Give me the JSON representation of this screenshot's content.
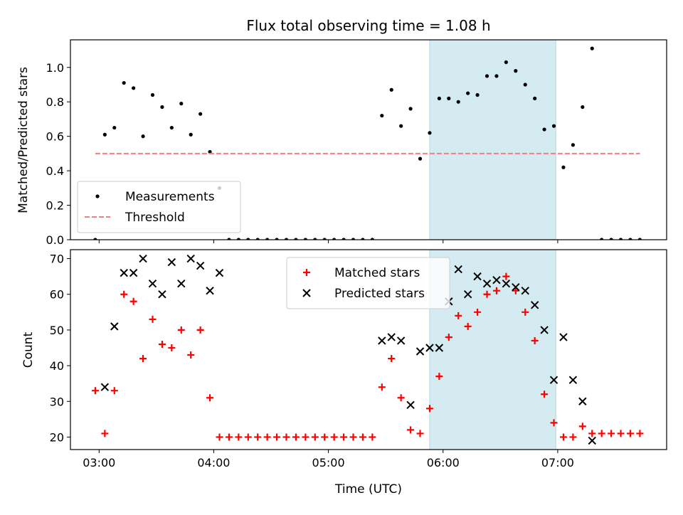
{
  "title": "Flux total observing time = 1.08 h",
  "chart_data": [
    {
      "id": "top",
      "type": "scatter",
      "ylabel": "Matched/Predicted stars",
      "xlim": [
        "02:45",
        "07:57"
      ],
      "ylim": [
        0,
        1.16
      ],
      "yticks": [
        0.0,
        0.2,
        0.4,
        0.6,
        0.8,
        1.0
      ],
      "yticklabels": [
        "0.0",
        "0.2",
        "0.4",
        "0.6",
        "0.8",
        "1.0"
      ],
      "shaded_interval": [
        "05:53",
        "06:59"
      ],
      "shade_color": "#d4ebf1",
      "legend": {
        "position": "lower-left",
        "entries": [
          "Measurements",
          "Threshold"
        ]
      },
      "series": [
        {
          "name": "Measurements",
          "marker": "dot",
          "color": "#000000",
          "points": [
            [
              "02:58",
              0.0
            ],
            [
              "03:03",
              0.61
            ],
            [
              "03:08",
              0.65
            ],
            [
              "03:13",
              0.91
            ],
            [
              "03:18",
              0.88
            ],
            [
              "03:23",
              0.6
            ],
            [
              "03:28",
              0.84
            ],
            [
              "03:33",
              0.77
            ],
            [
              "03:38",
              0.65
            ],
            [
              "03:43",
              0.79
            ],
            [
              "03:48",
              0.61
            ],
            [
              "03:53",
              0.73
            ],
            [
              "03:58",
              0.51
            ],
            [
              "04:03",
              0.3
            ],
            [
              "04:08",
              0.0
            ],
            [
              "04:13",
              0.0
            ],
            [
              "04:18",
              0.0
            ],
            [
              "04:23",
              0.0
            ],
            [
              "04:28",
              0.0
            ],
            [
              "04:33",
              0.0
            ],
            [
              "04:38",
              0.0
            ],
            [
              "04:43",
              0.0
            ],
            [
              "04:48",
              0.0
            ],
            [
              "04:53",
              0.0
            ],
            [
              "04:58",
              0.0
            ],
            [
              "05:03",
              0.0
            ],
            [
              "05:08",
              0.0
            ],
            [
              "05:13",
              0.0
            ],
            [
              "05:18",
              0.0
            ],
            [
              "05:23",
              0.0
            ],
            [
              "05:28",
              0.72
            ],
            [
              "05:33",
              0.87
            ],
            [
              "05:38",
              0.66
            ],
            [
              "05:43",
              0.76
            ],
            [
              "05:48",
              0.47
            ],
            [
              "05:53",
              0.62
            ],
            [
              "05:58",
              0.82
            ],
            [
              "06:03",
              0.82
            ],
            [
              "06:08",
              0.8
            ],
            [
              "06:13",
              0.85
            ],
            [
              "06:18",
              0.84
            ],
            [
              "06:23",
              0.95
            ],
            [
              "06:28",
              0.95
            ],
            [
              "06:33",
              1.03
            ],
            [
              "06:38",
              0.98
            ],
            [
              "06:43",
              0.9
            ],
            [
              "06:48",
              0.82
            ],
            [
              "06:53",
              0.64
            ],
            [
              "06:58",
              0.66
            ],
            [
              "07:03",
              0.42
            ],
            [
              "07:08",
              0.55
            ],
            [
              "07:13",
              0.77
            ],
            [
              "07:18",
              1.11
            ],
            [
              "07:23",
              0.0
            ],
            [
              "07:28",
              0.0
            ],
            [
              "07:33",
              0.0
            ],
            [
              "07:38",
              0.0
            ],
            [
              "07:43",
              0.0
            ]
          ]
        },
        {
          "name": "Threshold",
          "marker": "dashed-line",
          "color": "#f08080",
          "points": [
            [
              "02:58",
              0.5
            ],
            [
              "07:43",
              0.5
            ]
          ]
        }
      ]
    },
    {
      "id": "bottom",
      "type": "scatter",
      "xlabel": "Time (UTC)",
      "ylabel": "Count",
      "xlim": [
        "02:45",
        "07:57"
      ],
      "ylim": [
        16.5,
        72.5
      ],
      "xticks": [
        "03:00",
        "04:00",
        "05:00",
        "06:00",
        "07:00"
      ],
      "xticklabels": [
        "03:00",
        "04:00",
        "05:00",
        "06:00",
        "07:00"
      ],
      "yticks": [
        20,
        30,
        40,
        50,
        60,
        70
      ],
      "yticklabels": [
        "20",
        "30",
        "40",
        "50",
        "60",
        "70"
      ],
      "shaded_interval": [
        "05:53",
        "06:59"
      ],
      "shade_color": "#d4ebf1",
      "legend": {
        "position": "upper-center",
        "entries": [
          "Matched stars",
          "Predicted stars"
        ]
      },
      "series": [
        {
          "name": "Matched stars",
          "marker": "plus",
          "color": "#ff0000",
          "points": [
            [
              "02:58",
              33
            ],
            [
              "03:03",
              21
            ],
            [
              "03:08",
              33
            ],
            [
              "03:13",
              60
            ],
            [
              "03:18",
              58
            ],
            [
              "03:23",
              42
            ],
            [
              "03:28",
              53
            ],
            [
              "03:33",
              46
            ],
            [
              "03:38",
              45
            ],
            [
              "03:43",
              50
            ],
            [
              "03:48",
              43
            ],
            [
              "03:53",
              50
            ],
            [
              "03:58",
              31
            ],
            [
              "04:03",
              20
            ],
            [
              "04:08",
              20
            ],
            [
              "04:13",
              20
            ],
            [
              "04:18",
              20
            ],
            [
              "04:23",
              20
            ],
            [
              "04:28",
              20
            ],
            [
              "04:33",
              20
            ],
            [
              "04:38",
              20
            ],
            [
              "04:43",
              20
            ],
            [
              "04:48",
              20
            ],
            [
              "04:53",
              20
            ],
            [
              "04:58",
              20
            ],
            [
              "05:03",
              20
            ],
            [
              "05:08",
              20
            ],
            [
              "05:13",
              20
            ],
            [
              "05:18",
              20
            ],
            [
              "05:23",
              20
            ],
            [
              "05:28",
              34
            ],
            [
              "05:33",
              42
            ],
            [
              "05:38",
              31
            ],
            [
              "05:43",
              22
            ],
            [
              "05:48",
              21
            ],
            [
              "05:53",
              28
            ],
            [
              "05:58",
              37
            ],
            [
              "06:03",
              48
            ],
            [
              "06:08",
              54
            ],
            [
              "06:13",
              51
            ],
            [
              "06:18",
              55
            ],
            [
              "06:23",
              60
            ],
            [
              "06:28",
              61
            ],
            [
              "06:33",
              65
            ],
            [
              "06:38",
              61
            ],
            [
              "06:43",
              55
            ],
            [
              "06:48",
              47
            ],
            [
              "06:53",
              32
            ],
            [
              "06:58",
              24
            ],
            [
              "07:03",
              20
            ],
            [
              "07:08",
              20
            ],
            [
              "07:13",
              23
            ],
            [
              "07:18",
              21
            ],
            [
              "07:23",
              21
            ],
            [
              "07:28",
              21
            ],
            [
              "07:33",
              21
            ],
            [
              "07:38",
              21
            ],
            [
              "07:43",
              21
            ]
          ]
        },
        {
          "name": "Predicted stars",
          "marker": "x",
          "color": "#000000",
          "points": [
            [
              "03:03",
              34
            ],
            [
              "03:08",
              51
            ],
            [
              "03:13",
              66
            ],
            [
              "03:18",
              66
            ],
            [
              "03:23",
              70
            ],
            [
              "03:28",
              63
            ],
            [
              "03:33",
              60
            ],
            [
              "03:38",
              69
            ],
            [
              "03:43",
              63
            ],
            [
              "03:48",
              70
            ],
            [
              "03:53",
              68
            ],
            [
              "03:58",
              61
            ],
            [
              "04:03",
              66
            ],
            [
              "05:28",
              47
            ],
            [
              "05:33",
              48
            ],
            [
              "05:38",
              47
            ],
            [
              "05:43",
              29
            ],
            [
              "05:48",
              44
            ],
            [
              "05:53",
              45
            ],
            [
              "05:58",
              45
            ],
            [
              "06:03",
              58
            ],
            [
              "06:08",
              67
            ],
            [
              "06:13",
              60
            ],
            [
              "06:18",
              65
            ],
            [
              "06:23",
              63
            ],
            [
              "06:28",
              64
            ],
            [
              "06:33",
              63
            ],
            [
              "06:38",
              62
            ],
            [
              "06:43",
              61
            ],
            [
              "06:48",
              57
            ],
            [
              "06:53",
              50
            ],
            [
              "06:58",
              36
            ],
            [
              "07:03",
              48
            ],
            [
              "07:08",
              36
            ],
            [
              "07:13",
              30
            ],
            [
              "07:18",
              19
            ]
          ]
        }
      ]
    }
  ]
}
